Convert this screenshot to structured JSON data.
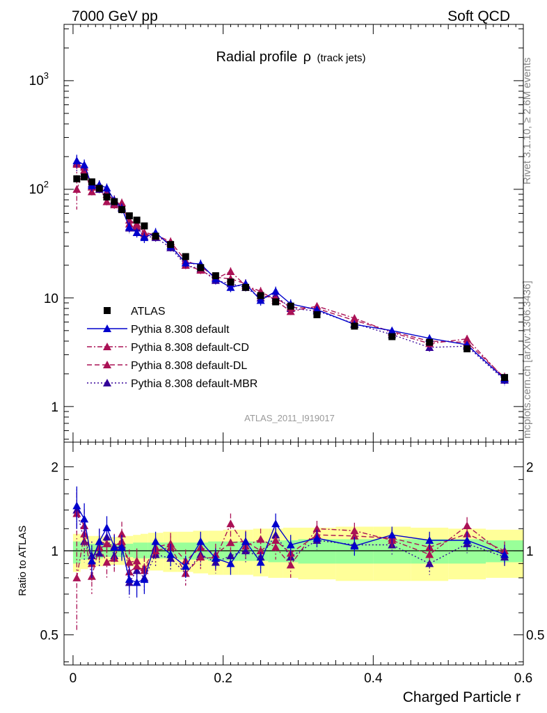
{
  "header": {
    "left": "7000 GeV pp",
    "right": "Soft QCD",
    "side_top": "Rivet 3.1.10, ≥ 2.6M events",
    "side_bottom": "mcplots.cern.ch [arXiv:1306.3436]"
  },
  "chart_data": [
    {
      "type": "scatter",
      "title": "Radial profile",
      "title_symbol": "ρ",
      "title_suffix": "(track jets)",
      "watermark": "ATLAS_2011_I919017",
      "yscale": "log",
      "xlim": [
        -0.012,
        0.6
      ],
      "ylim": [
        0.47,
        3300
      ],
      "ytick_labels": [
        {
          "value": 1,
          "label": "1"
        },
        {
          "value": 10,
          "label": "10"
        },
        {
          "value": 100,
          "label": "10",
          "exp": "2"
        },
        {
          "value": 1000,
          "label": "10",
          "exp": "3"
        }
      ],
      "legend_position": "lower-left",
      "x": [
        0.005,
        0.015,
        0.025,
        0.035,
        0.045,
        0.055,
        0.065,
        0.075,
        0.085,
        0.095,
        0.11,
        0.13,
        0.15,
        0.17,
        0.19,
        0.21,
        0.23,
        0.25,
        0.27,
        0.29,
        0.325,
        0.375,
        0.425,
        0.475,
        0.525,
        0.575
      ],
      "series": [
        {
          "name": "ATLAS",
          "color": "#000000",
          "marker": "square",
          "line": "none",
          "values": [
            125,
            130,
            117,
            102,
            85,
            77,
            65,
            57,
            52,
            46,
            37,
            31,
            24,
            19,
            16,
            14,
            12.5,
            10.5,
            9.2,
            8.4,
            7.0,
            5.5,
            4.4,
            3.9,
            3.4,
            1.85
          ],
          "errors": [
            8,
            7,
            6,
            5,
            4,
            4,
            3,
            3,
            3,
            2,
            2,
            1.5,
            1.2,
            1,
            0.8,
            0.7,
            0.6,
            0.5,
            0.5,
            0.4,
            0.35,
            0.3,
            0.25,
            0.2,
            0.2,
            0.12
          ]
        },
        {
          "name": "Pythia 8.308 default",
          "color": "#0000cc",
          "marker": "triangle",
          "line": "solid",
          "values": [
            183,
            168,
            108,
            110,
            103,
            79,
            67,
            45,
            40,
            36,
            40,
            30,
            21,
            20.5,
            15,
            12.5,
            13.5,
            9.5,
            11.5,
            8.8,
            7.8,
            5.7,
            5.0,
            4.25,
            3.7,
            1.8
          ],
          "errors": [
            25,
            20,
            12,
            11,
            10,
            8,
            7,
            5,
            4,
            4,
            4,
            3,
            2,
            2,
            1.5,
            1.2,
            1.3,
            1,
            1.2,
            0.9,
            0.6,
            0.5,
            0.4,
            0.35,
            0.3,
            0.2
          ]
        },
        {
          "name": "Pythia 8.308 default-CD",
          "color": "#aa1155",
          "marker": "triangle",
          "line": "dashdot",
          "values": [
            100,
            150,
            95,
            105,
            77,
            72,
            75,
            48,
            46,
            39,
            37,
            32,
            20,
            18,
            15,
            17.5,
            13,
            11.5,
            9.5,
            7.5,
            8.4,
            6.5,
            4.8,
            3.8,
            4.2,
            1.8
          ],
          "errors": [
            35,
            20,
            10,
            10,
            8,
            7,
            7,
            5,
            5,
            4,
            3,
            3,
            2,
            1.8,
            1.5,
            1.6,
            1.3,
            1.1,
            1,
            0.8,
            0.6,
            0.5,
            0.4,
            0.35,
            0.35,
            0.2
          ]
        },
        {
          "name": "Pythia 8.308 default-DL",
          "color": "#aa1155",
          "marker": "triangle",
          "line": "dashed",
          "values": [
            170,
            160,
            105,
            110,
            90,
            80,
            70,
            52,
            48,
            40,
            38,
            33,
            22,
            19.5,
            15.5,
            15,
            13.5,
            10.5,
            10,
            8.2,
            8.0,
            6.2,
            4.9,
            4.0,
            3.9,
            1.85
          ],
          "errors": [
            30,
            22,
            12,
            11,
            9,
            8,
            7,
            5,
            5,
            4,
            3,
            3,
            2,
            1.8,
            1.5,
            1.4,
            1.3,
            1,
            1,
            0.8,
            0.6,
            0.5,
            0.4,
            0.35,
            0.3,
            0.2
          ]
        },
        {
          "name": "Pythia 8.308 default-MBR",
          "color": "#330099",
          "marker": "triangle",
          "line": "dotted",
          "values": [
            175,
            140,
            112,
            100,
            95,
            74,
            68,
            44,
            44,
            37,
            36,
            29,
            20,
            18.5,
            14.5,
            13.5,
            12.5,
            10,
            10.5,
            8.0,
            7.6,
            5.8,
            4.6,
            3.5,
            3.6,
            1.75
          ],
          "errors": [
            28,
            20,
            12,
            10,
            9,
            7,
            7,
            5,
            4,
            4,
            3,
            3,
            2,
            1.8,
            1.4,
            1.3,
            1.2,
            1,
            1,
            0.8,
            0.6,
            0.5,
            0.4,
            0.3,
            0.3,
            0.2
          ]
        }
      ]
    },
    {
      "type": "scatter",
      "ylabel": "Ratio to ATLAS",
      "xlabel": "Charged Particle r",
      "xlim": [
        -0.012,
        0.6
      ],
      "ylim": [
        0.39,
        2.45
      ],
      "yscale": "log",
      "xtick_labels": [
        {
          "value": 0,
          "label": "0"
        },
        {
          "value": 0.2,
          "label": "0.2"
        },
        {
          "value": 0.4,
          "label": "0.4"
        },
        {
          "value": 0.6,
          "label": "0.6"
        }
      ],
      "ytick_labels": [
        {
          "value": 0.5,
          "label": "0.5"
        },
        {
          "value": 1,
          "label": "1"
        },
        {
          "value": 2,
          "label": "2"
        }
      ],
      "bands": {
        "x_edges": [
          0,
          0.01,
          0.02,
          0.03,
          0.04,
          0.05,
          0.06,
          0.07,
          0.08,
          0.09,
          0.1,
          0.12,
          0.14,
          0.16,
          0.18,
          0.2,
          0.22,
          0.24,
          0.26,
          0.28,
          0.3,
          0.35,
          0.4,
          0.45,
          0.5,
          0.55,
          0.6
        ],
        "green_low": [
          0.9,
          0.93,
          0.94,
          0.94,
          0.95,
          0.95,
          0.95,
          0.95,
          0.94,
          0.94,
          0.94,
          0.94,
          0.93,
          0.93,
          0.92,
          0.92,
          0.92,
          0.92,
          0.91,
          0.91,
          0.9,
          0.9,
          0.9,
          0.9,
          0.9,
          0.91
        ],
        "green_high": [
          1.08,
          1.07,
          1.06,
          1.06,
          1.06,
          1.06,
          1.06,
          1.06,
          1.07,
          1.07,
          1.07,
          1.07,
          1.07,
          1.07,
          1.08,
          1.08,
          1.08,
          1.08,
          1.09,
          1.09,
          1.1,
          1.1,
          1.1,
          1.1,
          1.1,
          1.09
        ],
        "yellow_low": [
          0.84,
          0.86,
          0.88,
          0.88,
          0.89,
          0.89,
          0.89,
          0.88,
          0.87,
          0.86,
          0.85,
          0.84,
          0.84,
          0.83,
          0.82,
          0.82,
          0.82,
          0.81,
          0.8,
          0.8,
          0.79,
          0.78,
          0.78,
          0.78,
          0.79,
          0.8
        ],
        "yellow_high": [
          1.15,
          1.14,
          1.13,
          1.13,
          1.12,
          1.12,
          1.12,
          1.13,
          1.14,
          1.15,
          1.16,
          1.17,
          1.17,
          1.18,
          1.18,
          1.19,
          1.19,
          1.2,
          1.2,
          1.21,
          1.21,
          1.22,
          1.22,
          1.21,
          1.2,
          1.19
        ]
      },
      "series": [
        {
          "name": "Pythia 8.308 default",
          "color": "#0000cc",
          "line": "solid",
          "values": [
            1.45,
            1.3,
            0.92,
            1.08,
            1.21,
            1.03,
            1.03,
            0.79,
            0.77,
            0.79,
            1.08,
            0.97,
            0.88,
            1.08,
            0.94,
            0.9,
            1.08,
            0.91,
            1.25,
            1.05,
            1.11,
            1.04,
            1.14,
            1.09,
            1.09,
            0.97
          ],
          "errors": [
            0.25,
            0.18,
            0.12,
            0.12,
            0.12,
            0.11,
            0.11,
            0.09,
            0.09,
            0.09,
            0.09,
            0.09,
            0.08,
            0.09,
            0.08,
            0.08,
            0.09,
            0.08,
            0.11,
            0.09,
            0.08,
            0.08,
            0.08,
            0.08,
            0.08,
            0.08
          ]
        },
        {
          "name": "Pythia 8.308 default-CD",
          "color": "#aa1155",
          "line": "dashdot",
          "values": [
            0.8,
            1.15,
            0.81,
            1.03,
            0.91,
            0.94,
            1.15,
            0.84,
            0.88,
            0.85,
            1.0,
            1.03,
            0.83,
            0.95,
            0.94,
            1.25,
            1.04,
            1.1,
            1.03,
            0.89,
            1.2,
            1.18,
            1.09,
            0.97,
            1.23,
            0.97
          ],
          "errors": [
            0.28,
            0.17,
            0.11,
            0.11,
            0.11,
            0.1,
            0.12,
            0.1,
            0.1,
            0.1,
            0.09,
            0.1,
            0.08,
            0.09,
            0.09,
            0.11,
            0.1,
            0.1,
            0.1,
            0.09,
            0.08,
            0.08,
            0.08,
            0.08,
            0.09,
            0.08
          ]
        },
        {
          "name": "Pythia 8.308 default-DL",
          "color": "#aa1155",
          "line": "dashed",
          "values": [
            1.36,
            1.23,
            0.9,
            1.08,
            1.06,
            1.04,
            1.08,
            0.91,
            0.92,
            0.87,
            1.03,
            1.06,
            0.92,
            1.03,
            0.97,
            1.07,
            1.08,
            1.0,
            1.09,
            0.98,
            1.14,
            1.13,
            1.11,
            1.03,
            1.15,
            1.0
          ],
          "errors": [
            0.26,
            0.18,
            0.12,
            0.12,
            0.11,
            0.11,
            0.11,
            0.1,
            0.1,
            0.09,
            0.09,
            0.1,
            0.09,
            0.09,
            0.09,
            0.1,
            0.1,
            0.1,
            0.1,
            0.09,
            0.08,
            0.08,
            0.08,
            0.08,
            0.09,
            0.08
          ]
        },
        {
          "name": "Pythia 8.308 default-MBR",
          "color": "#330099",
          "line": "dotted",
          "values": [
            1.4,
            1.08,
            0.96,
            0.98,
            1.12,
            0.96,
            1.05,
            0.77,
            0.85,
            0.8,
            0.97,
            0.94,
            0.83,
            0.97,
            0.91,
            0.96,
            1.0,
            0.95,
            1.14,
            0.95,
            1.09,
            1.05,
            1.05,
            0.9,
            1.06,
            0.95
          ],
          "errors": [
            0.26,
            0.17,
            0.12,
            0.11,
            0.11,
            0.1,
            0.11,
            0.09,
            0.09,
            0.09,
            0.09,
            0.09,
            0.08,
            0.09,
            0.08,
            0.09,
            0.09,
            0.09,
            0.1,
            0.09,
            0.08,
            0.08,
            0.08,
            0.08,
            0.08,
            0.08
          ]
        }
      ]
    }
  ]
}
